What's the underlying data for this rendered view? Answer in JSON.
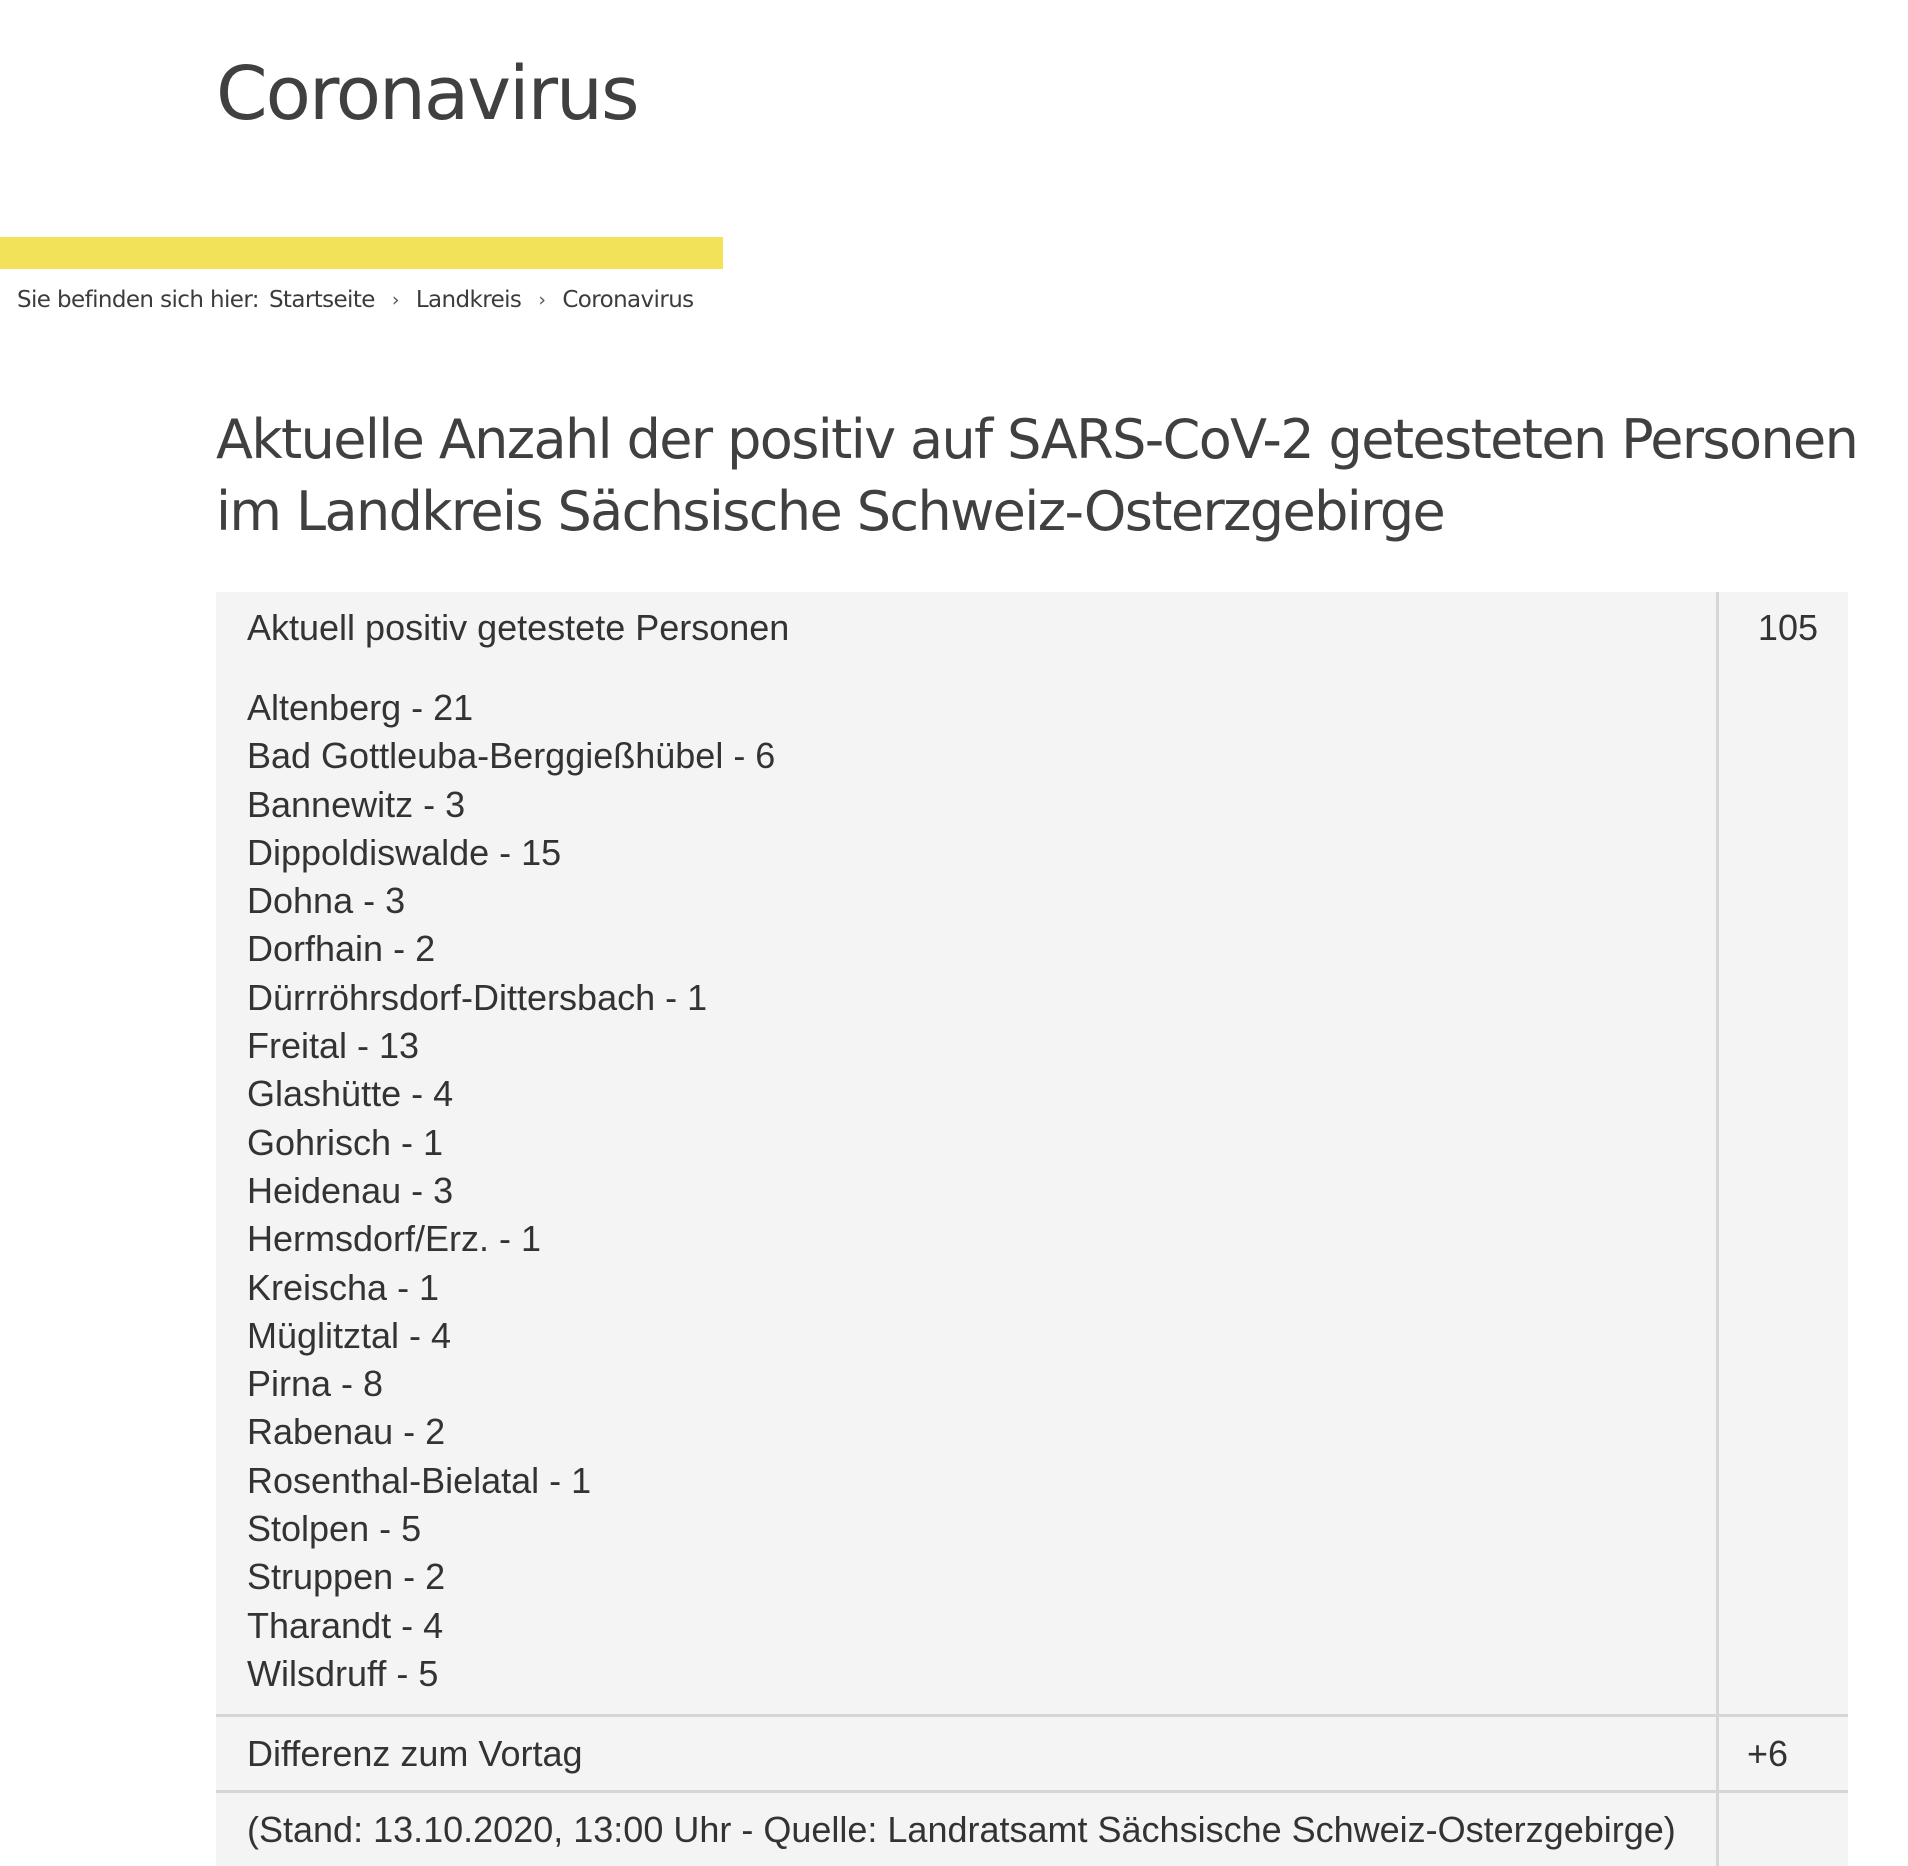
{
  "page": {
    "title": "Coronavirus"
  },
  "breadcrumb": {
    "prefix": "Sie befinden sich hier:",
    "items": [
      "Startseite",
      "Landkreis",
      "Coronavirus"
    ],
    "separator": "›"
  },
  "section": {
    "heading": "Aktuelle Anzahl der positiv auf SARS-CoV-2 getesteten Personen im Landkreis Sächsische Schweiz-Osterzgebirge"
  },
  "table": {
    "total_label": "Aktuell positiv getestete Personen",
    "total_value": "105",
    "municipalities": [
      "Altenberg - 21",
      "Bad Gottleuba-Berggießhübel - 6",
      "Bannewitz - 3",
      "Dippoldiswalde - 15",
      "Dohna - 3",
      "Dorfhain - 2",
      "Dürrröhrsdorf-Dittersbach - 1",
      "Freital - 13",
      "Glashütte - 4",
      "Gohrisch - 1",
      "Heidenau - 3",
      "Hermsdorf/Erz. - 1",
      "Kreischa - 1",
      "Müglitztal - 4",
      "Pirna - 8",
      "Rabenau - 2",
      "Rosenthal-Bielatal - 1",
      "Stolpen - 5",
      "Struppen - 2",
      "Tharandt - 4",
      "Wilsdruff - 5"
    ],
    "diff_label": "Differenz zum Vortag",
    "diff_value": "+6",
    "source_note": "(Stand: 13.10.2020, 13:00 Uhr - Quelle: Landratsamt Sächsische Schweiz-Osterzgebirge)",
    "source_value": ""
  },
  "colors": {
    "accent_bar": "#f2e25a",
    "table_background": "#f4f4f4",
    "table_divider": "#d6d6d6",
    "text": "#3c3c3c"
  }
}
